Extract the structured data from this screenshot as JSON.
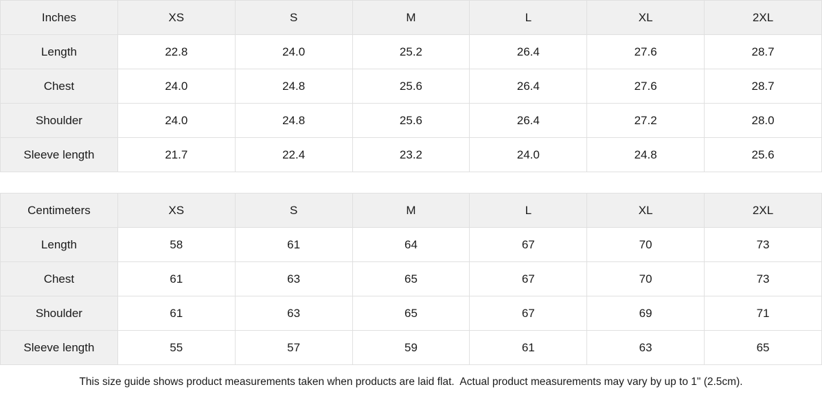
{
  "colors": {
    "header_bg": "#f0f0f0",
    "cell_bg": "#ffffff",
    "border": "#e0e0e0",
    "text": "#1a1a1a"
  },
  "tables": [
    {
      "unit_label": "Inches",
      "size_headers": [
        "XS",
        "S",
        "M",
        "L",
        "XL",
        "2XL"
      ],
      "rows": [
        {
          "label": "Length",
          "values": [
            "22.8",
            "24.0",
            "25.2",
            "26.4",
            "27.6",
            "28.7"
          ]
        },
        {
          "label": "Chest",
          "values": [
            "24.0",
            "24.8",
            "25.6",
            "26.4",
            "27.6",
            "28.7"
          ]
        },
        {
          "label": "Shoulder",
          "values": [
            "24.0",
            "24.8",
            "25.6",
            "26.4",
            "27.2",
            "28.0"
          ]
        },
        {
          "label": "Sleeve length",
          "values": [
            "21.7",
            "22.4",
            "23.2",
            "24.0",
            "24.8",
            "25.6"
          ]
        }
      ]
    },
    {
      "unit_label": "Centimeters",
      "size_headers": [
        "XS",
        "S",
        "M",
        "L",
        "XL",
        "2XL"
      ],
      "rows": [
        {
          "label": "Length",
          "values": [
            "58",
            "61",
            "64",
            "67",
            "70",
            "73"
          ]
        },
        {
          "label": "Chest",
          "values": [
            "61",
            "63",
            "65",
            "67",
            "70",
            "73"
          ]
        },
        {
          "label": "Shoulder",
          "values": [
            "61",
            "63",
            "65",
            "67",
            "69",
            "71"
          ]
        },
        {
          "label": "Sleeve length",
          "values": [
            "55",
            "57",
            "59",
            "61",
            "63",
            "65"
          ]
        }
      ]
    }
  ],
  "footer": {
    "note": "This size guide shows product measurements taken when products are laid flat.  Actual product measurements may vary by up to 1\" (2.5cm)."
  }
}
